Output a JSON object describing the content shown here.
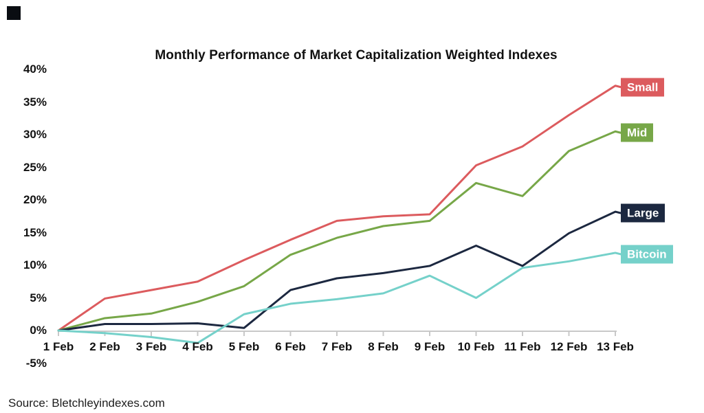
{
  "page": {
    "title": "Monthly Performance of Market Capitalization Weighted Indexes",
    "source": "Source: Bletchleyindexes.com"
  },
  "style": {
    "axis_color": "#c8c8c8",
    "text_color": "#111111",
    "background": "#ffffff"
  },
  "chart_data": {
    "type": "line",
    "title": "Monthly Performance of Market Capitalization Weighted Indexes",
    "xlabel": "",
    "ylabel": "",
    "categories": [
      "1 Feb",
      "2 Feb",
      "3 Feb",
      "4 Feb",
      "5 Feb",
      "6 Feb",
      "7 Feb",
      "8 Feb",
      "9 Feb",
      "10 Feb",
      "11 Feb",
      "12 Feb",
      "13 Feb"
    ],
    "y_ticks": [
      40,
      35,
      30,
      25,
      20,
      15,
      10,
      5,
      0,
      -5
    ],
    "y_tick_suffix": "%",
    "ylim": [
      -5,
      40
    ],
    "grid": false,
    "legend_position": "right-at-line-ends",
    "series": [
      {
        "name": "Small",
        "color": "#DC5B5E",
        "values": [
          0,
          4.9,
          6.2,
          7.5,
          10.8,
          13.9,
          16.8,
          17.5,
          17.8,
          25.3,
          28.2,
          33.0,
          37.5
        ]
      },
      {
        "name": "Mid",
        "color": "#77A748",
        "values": [
          0,
          1.9,
          2.6,
          4.4,
          6.8,
          11.6,
          14.2,
          16.0,
          16.8,
          22.6,
          20.6,
          27.5,
          30.5
        ]
      },
      {
        "name": "Large",
        "color": "#1C2840",
        "values": [
          0,
          1.0,
          1.0,
          1.1,
          0.4,
          6.2,
          8.0,
          8.8,
          9.9,
          13.0,
          9.9,
          14.9,
          18.2
        ]
      },
      {
        "name": "Bitcoin",
        "color": "#75D1CA",
        "values": [
          0,
          -0.4,
          -1.0,
          -1.9,
          2.5,
          4.1,
          4.8,
          5.7,
          8.4,
          5.0,
          9.6,
          10.6,
          11.9
        ]
      }
    ],
    "source": "Source: Bletchleyindexes.com"
  }
}
